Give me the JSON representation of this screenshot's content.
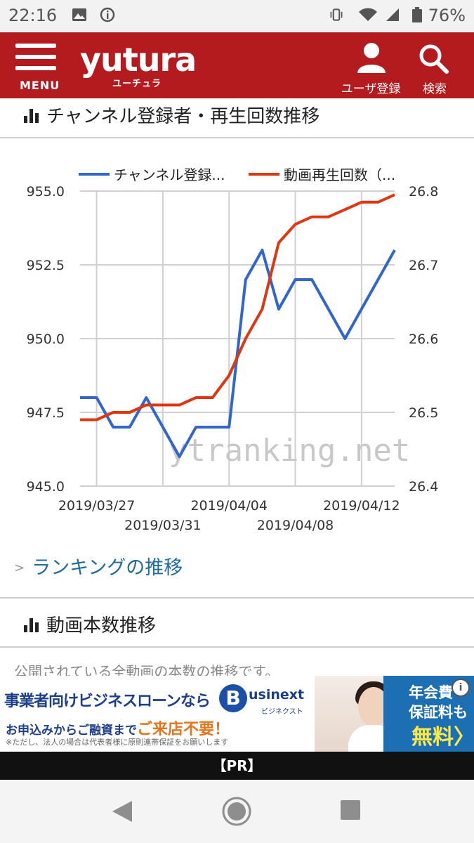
{
  "status_bar": {
    "time": "22:16",
    "battery": "76%"
  },
  "header": {
    "menu_label": "MENU",
    "logo": "yutura",
    "logo_sub": "ユーチュラ",
    "user_register_label": "ユーザ登録",
    "search_label": "検索"
  },
  "section1": {
    "title": "チャンネル登録者・再生回数推移"
  },
  "chart_data": {
    "type": "line",
    "legend": {
      "placement": "top",
      "entries": [
        "チャンネル登録...",
        "動画再生回数（..."
      ]
    },
    "watermark": "ytranking.net",
    "x": [
      "2019/03/26",
      "2019/03/27",
      "2019/03/28",
      "2019/03/29",
      "2019/03/30",
      "2019/03/31",
      "2019/04/01",
      "2019/04/02",
      "2019/04/03",
      "2019/04/04",
      "2019/04/05",
      "2019/04/06",
      "2019/04/07",
      "2019/04/08",
      "2019/04/09",
      "2019/04/10",
      "2019/04/11",
      "2019/04/12",
      "2019/04/13",
      "2019/04/14"
    ],
    "x_tick_labels": [
      "2019/03/27",
      "2019/03/31",
      "2019/04/04",
      "2019/04/08",
      "2019/04/12"
    ],
    "grid": true,
    "series": [
      {
        "name": "チャンネル登録...",
        "axis": "left",
        "color": "#3366cc",
        "values": [
          948,
          948,
          947,
          947,
          948,
          947,
          946,
          947,
          947,
          947,
          952,
          953,
          951,
          952,
          952,
          951,
          950,
          951,
          952,
          953
        ]
      },
      {
        "name": "動画再生回数（...",
        "axis": "right",
        "color": "#dc3912",
        "values": [
          26.49,
          26.49,
          26.5,
          26.5,
          26.51,
          26.51,
          26.51,
          26.52,
          26.52,
          26.55,
          26.6,
          26.64,
          26.73,
          26.755,
          26.765,
          26.765,
          26.775,
          26.785,
          26.785,
          26.795
        ]
      }
    ],
    "left_axis": {
      "ylim": [
        945.0,
        955.0
      ],
      "ticks": [
        "955.0",
        "952.5",
        "950.0",
        "947.5",
        "945.0"
      ]
    },
    "right_axis": {
      "ylim": [
        26.4,
        26.8
      ],
      "ticks": [
        "26.8",
        "26.7",
        "26.6",
        "26.5",
        "26.4"
      ]
    }
  },
  "ranking_link": {
    "label": "ランキングの推移"
  },
  "section2": {
    "title": "動画本数推移",
    "description": "公開されている全動画の本数の推移です。"
  },
  "ad": {
    "headline": "事業者向けビジネスローンなら",
    "brand_initial": "B",
    "brand": "usinext",
    "brand_kana": "ビジネクスト",
    "line2_prefix": "お申込みからご融資まで",
    "line2_highlight": "ご来店不要！",
    "disclaimer": "※ただし、法人の場合は代表者様に原則連帯保証をお願いします",
    "right_line1": "年会費",
    "right_line2": "保証料も",
    "right_line3": "無料〉",
    "info": "i"
  },
  "pr_label": "【PR】",
  "colors": {
    "brand_red": "#b31b1f",
    "link_blue": "#1f6b9e"
  }
}
